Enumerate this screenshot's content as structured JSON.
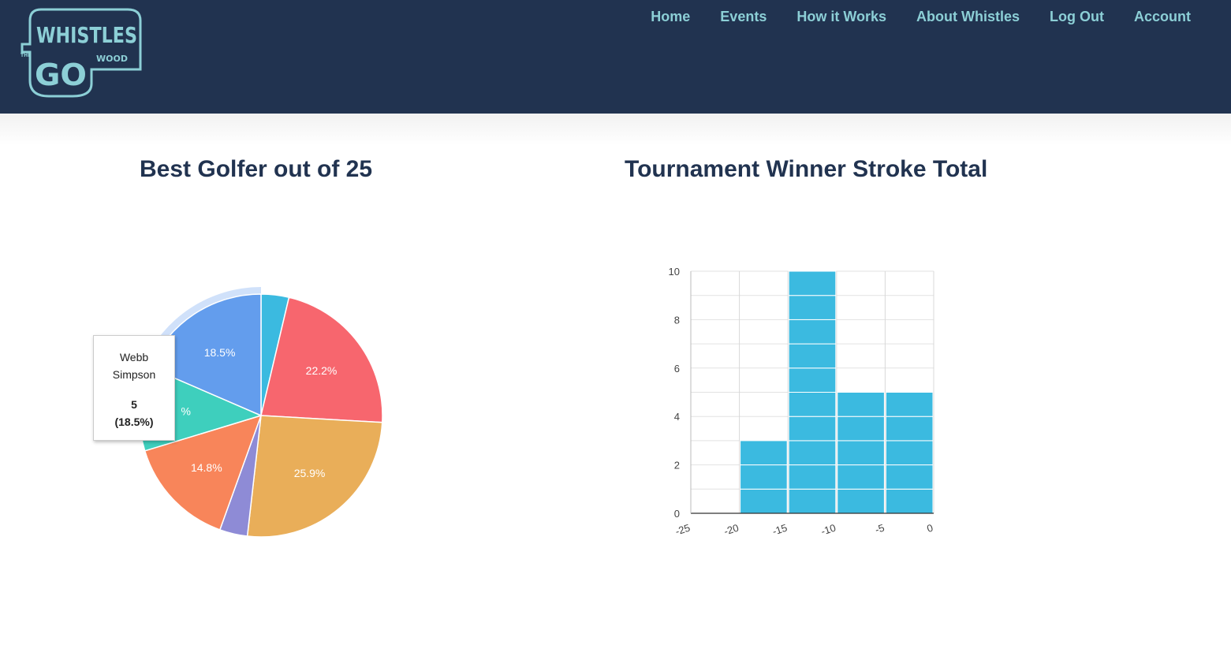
{
  "logo": {
    "small_top_text": "THE",
    "word_main": "WHISTLES",
    "word_go": "GO",
    "word_wood": "WOOD"
  },
  "nav": {
    "items": [
      {
        "label": "Home"
      },
      {
        "label": "Events"
      },
      {
        "label": "How it Works"
      },
      {
        "label": "About Whistles"
      },
      {
        "label": "Log Out"
      },
      {
        "label": "Account"
      }
    ]
  },
  "colors": {
    "header_bg": "#213350",
    "nav_text": "#8ccfd6",
    "title_text": "#213350",
    "bar_fill": "#3bbae0"
  },
  "tooltip": {
    "name": "Webb Simpson",
    "value": "5",
    "percent": "(18.5%)"
  },
  "chart_data": [
    {
      "type": "pie",
      "title": "Best Golfer out of 25",
      "slices": [
        {
          "value": 3.7,
          "label": "",
          "color": "#3bbae0"
        },
        {
          "value": 22.2,
          "label": "22.2%",
          "color": "#f7666e"
        },
        {
          "value": 25.9,
          "label": "25.9%",
          "color": "#e9ae59"
        },
        {
          "value": 3.7,
          "label": "",
          "color": "#8e8bd6"
        },
        {
          "value": 14.8,
          "label": "14.8%",
          "color": "#f8855a"
        },
        {
          "value": 11.2,
          "label": "%",
          "color": "#3ecfbd"
        },
        {
          "value": 18.5,
          "label": "18.5%",
          "color": "#639ded",
          "name": "Webb Simpson",
          "highlighted": true
        }
      ]
    },
    {
      "type": "bar",
      "title": "Tournament Winner Stroke Total",
      "bins": [
        {
          "from": -25,
          "to": -20,
          "value": 0
        },
        {
          "from": -20,
          "to": -15,
          "value": 3
        },
        {
          "from": -15,
          "to": -10,
          "value": 10
        },
        {
          "from": -10,
          "to": -5,
          "value": 5
        },
        {
          "from": -5,
          "to": 0,
          "value": 5
        }
      ],
      "xlim": [
        -25,
        0
      ],
      "ylim": [
        0,
        10
      ],
      "x_ticks": [
        "-25",
        "-20",
        "-15",
        "-10",
        "-5",
        "0"
      ],
      "y_ticks": [
        "0",
        "2",
        "4",
        "6",
        "8",
        "10"
      ],
      "grid": true
    }
  ]
}
